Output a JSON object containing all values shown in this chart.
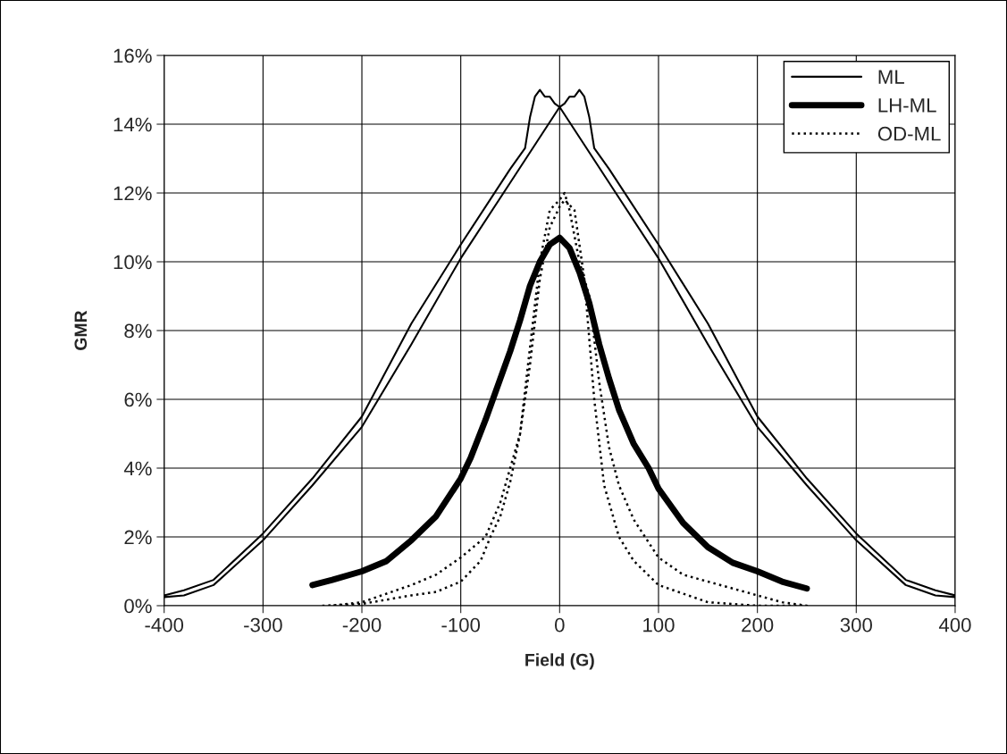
{
  "chart_data": {
    "type": "line",
    "xlabel": "Field (G)",
    "ylabel": "GMR",
    "xlim": [
      -400,
      400
    ],
    "xticks": [
      -400,
      -300,
      -200,
      -100,
      0,
      100,
      200,
      300,
      400
    ],
    "ylim": [
      0,
      16
    ],
    "yticks": [
      {
        "value": 0,
        "label": "0%"
      },
      {
        "value": 2,
        "label": "2%"
      },
      {
        "value": 4,
        "label": "4%"
      },
      {
        "value": 6,
        "label": "6%"
      },
      {
        "value": 8,
        "label": "8%"
      },
      {
        "value": 10,
        "label": "10%"
      },
      {
        "value": 12,
        "label": "12%"
      },
      {
        "value": 14,
        "label": "14%"
      },
      {
        "value": 16,
        "label": "16%"
      }
    ],
    "grid": true,
    "legend": "top right",
    "marker": "none",
    "series": [
      {
        "name": "ML",
        "color": "#000000",
        "line_style": "solid",
        "x": [
          -400,
          -380,
          -350,
          -300,
          -250,
          -200,
          -150,
          -100,
          -50,
          -35,
          -30,
          -25,
          -20,
          -15,
          -10,
          -5,
          0,
          50,
          100,
          150,
          200,
          250,
          300,
          350,
          380,
          400,
          400,
          380,
          350,
          300,
          250,
          200,
          150,
          100,
          50,
          35,
          30,
          25,
          20,
          15,
          10,
          5,
          0,
          -50,
          -100,
          -150,
          -200,
          -250,
          -300,
          -350,
          -380,
          -400
        ],
        "values": [
          0.3,
          0.45,
          0.75,
          2.1,
          3.7,
          5.5,
          8.2,
          10.5,
          12.7,
          13.3,
          14.2,
          14.8,
          15.0,
          14.8,
          14.8,
          14.6,
          14.5,
          12.3,
          10.1,
          7.6,
          5.2,
          3.5,
          1.9,
          0.6,
          0.3,
          0.25,
          0.3,
          0.45,
          0.75,
          2.1,
          3.7,
          5.5,
          8.2,
          10.5,
          12.7,
          13.3,
          14.2,
          14.8,
          15.0,
          14.8,
          14.8,
          14.6,
          14.5,
          12.3,
          10.1,
          7.6,
          5.2,
          3.5,
          1.9,
          0.6,
          0.3,
          0.25
        ]
      },
      {
        "name": "LH-ML",
        "color": "#000000",
        "line_style": "solid",
        "x": [
          -250,
          -230,
          -200,
          -175,
          -150,
          -125,
          -100,
          -90,
          -75,
          -60,
          -50,
          -40,
          -30,
          -20,
          -10,
          0,
          10,
          20,
          30,
          40,
          50,
          60,
          75,
          90,
          100,
          125,
          150,
          175,
          200,
          225,
          250
        ],
        "values": [
          0.6,
          0.75,
          1.0,
          1.3,
          1.9,
          2.6,
          3.7,
          4.3,
          5.4,
          6.6,
          7.4,
          8.3,
          9.3,
          10.0,
          10.5,
          10.7,
          10.4,
          9.7,
          8.8,
          7.6,
          6.6,
          5.7,
          4.7,
          4.0,
          3.4,
          2.4,
          1.7,
          1.25,
          1.0,
          0.7,
          0.5
        ]
      },
      {
        "name": "OD-ML",
        "color": "#000000",
        "line_style": "dotted",
        "x": [
          -240,
          -200,
          -150,
          -125,
          -100,
          -80,
          -70,
          -60,
          -50,
          -40,
          -30,
          -20,
          -10,
          0,
          5,
          10,
          20,
          30,
          40,
          50,
          60,
          75,
          100,
          125,
          150,
          175,
          200,
          225,
          250,
          200,
          150,
          125,
          100,
          75,
          60,
          45,
          35,
          25,
          15,
          5,
          0,
          -10,
          -20,
          -30,
          -40,
          -50,
          -60,
          -75,
          -100,
          -125,
          -150,
          -200,
          -230
        ],
        "values": [
          0.0,
          0.05,
          0.3,
          0.4,
          0.7,
          1.3,
          2.0,
          2.6,
          3.6,
          5.0,
          7.5,
          10.0,
          11.5,
          11.8,
          12.0,
          11.5,
          10.0,
          9.0,
          6.5,
          4.6,
          3.5,
          2.5,
          1.4,
          0.9,
          0.7,
          0.5,
          0.3,
          0.1,
          0.0,
          0.0,
          0.1,
          0.35,
          0.6,
          1.3,
          2.0,
          3.5,
          6.0,
          9.5,
          11.5,
          11.8,
          11.6,
          11.0,
          9.5,
          7.0,
          5.0,
          4.0,
          3.0,
          2.0,
          1.4,
          0.9,
          0.6,
          0.1,
          0.0
        ]
      }
    ]
  }
}
